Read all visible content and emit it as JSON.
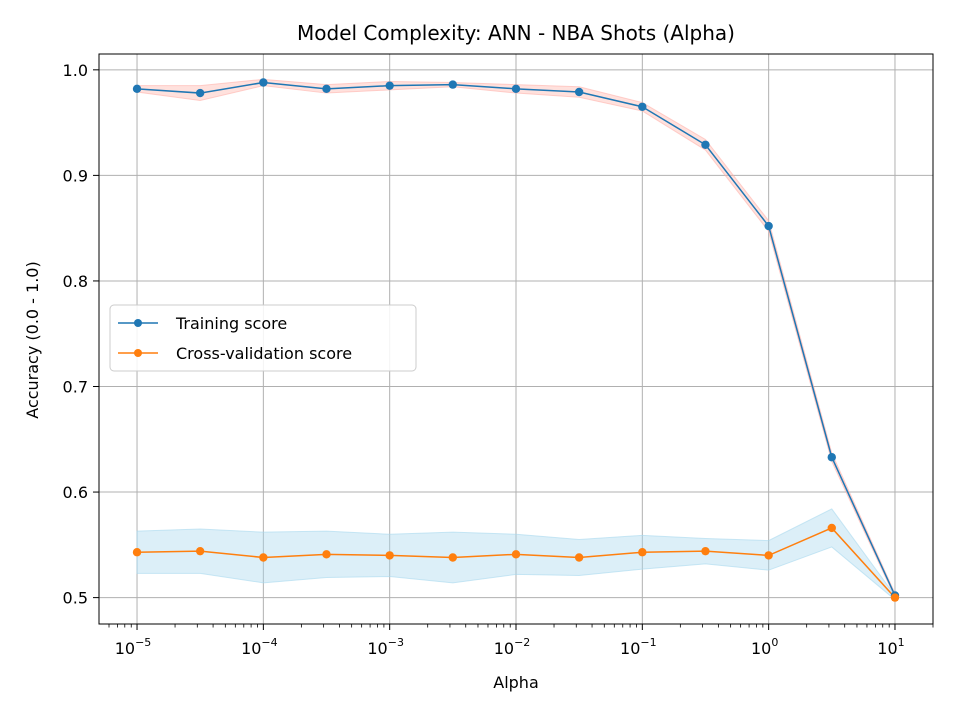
{
  "chart_data": {
    "type": "line",
    "title": "Model Complexity: ANN - NBA Shots (Alpha)",
    "xlabel": "Alpha",
    "ylabel": "Accuracy (0.0 - 1.0)",
    "x_scale": "log",
    "xlim": [
      5e-06,
      20
    ],
    "ylim": [
      0.475,
      1.015
    ],
    "grid": true,
    "legend_position": "center-left",
    "x_ticks": [
      {
        "value": 1e-05,
        "base": "10",
        "exp": "−5"
      },
      {
        "value": 0.0001,
        "base": "10",
        "exp": "−4"
      },
      {
        "value": 0.001,
        "base": "10",
        "exp": "−3"
      },
      {
        "value": 0.01,
        "base": "10",
        "exp": "−2"
      },
      {
        "value": 0.1,
        "base": "10",
        "exp": "−1"
      },
      {
        "value": 1,
        "base": "10",
        "exp": "0"
      },
      {
        "value": 10,
        "base": "10",
        "exp": "1"
      }
    ],
    "y_ticks": [
      {
        "value": 0.5,
        "label": "0.5"
      },
      {
        "value": 0.6,
        "label": "0.6"
      },
      {
        "value": 0.7,
        "label": "0.7"
      },
      {
        "value": 0.8,
        "label": "0.8"
      },
      {
        "value": 0.9,
        "label": "0.9"
      },
      {
        "value": 1.0,
        "label": "1.0"
      }
    ],
    "x": [
      1e-05,
      3.16e-05,
      0.0001,
      0.000316,
      0.001,
      0.00316,
      0.01,
      0.0316,
      0.1,
      0.316,
      1,
      3.16,
      10
    ],
    "series": [
      {
        "name": "Training score",
        "color": "#1f77b4",
        "band_color": "#ffb3ab",
        "values": [
          0.982,
          0.978,
          0.988,
          0.982,
          0.985,
          0.986,
          0.982,
          0.979,
          0.965,
          0.929,
          0.852,
          0.633,
          0.502
        ],
        "std": [
          0.003,
          0.007,
          0.003,
          0.004,
          0.004,
          0.002,
          0.004,
          0.005,
          0.004,
          0.005,
          0.005,
          0.004,
          0.002
        ]
      },
      {
        "name": "Cross-validation score",
        "color": "#ff7f0e",
        "band_color": "#a8d8ee",
        "values": [
          0.543,
          0.544,
          0.538,
          0.541,
          0.54,
          0.538,
          0.541,
          0.538,
          0.543,
          0.544,
          0.54,
          0.566,
          0.5
        ],
        "std": [
          0.02,
          0.021,
          0.024,
          0.022,
          0.02,
          0.024,
          0.019,
          0.017,
          0.016,
          0.012,
          0.014,
          0.018,
          0.002
        ]
      }
    ]
  }
}
